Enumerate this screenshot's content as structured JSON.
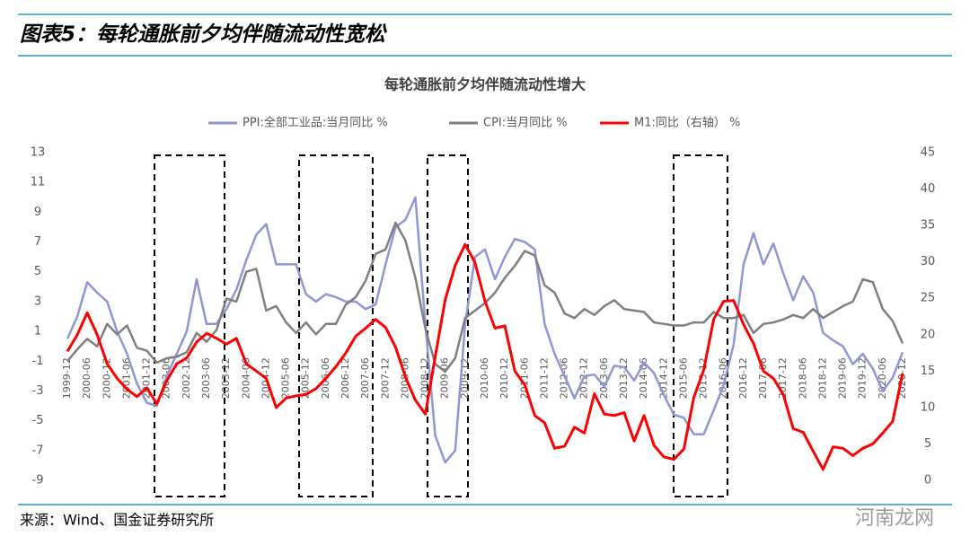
{
  "header": {
    "title": "图表5：每轮通胀前夕均伴随流动性宽松"
  },
  "chart_data": {
    "type": "line",
    "title": "每轮通胀前夕均伴随流动性增大",
    "categories": [
      "1999-12",
      null,
      "2000-06",
      null,
      "2000-12",
      null,
      "2001-06",
      null,
      "2001-12",
      null,
      "2002-06",
      null,
      "2002-12",
      null,
      "2003-06",
      null,
      "2003-12",
      null,
      "2004-06",
      null,
      "2004-12",
      null,
      "2005-06",
      null,
      "2005-12",
      null,
      "2006-06",
      null,
      "2006-12",
      null,
      "2007-06",
      null,
      "2007-12",
      null,
      "2008-06",
      null,
      "2008-12",
      null,
      "2009-06",
      null,
      "2009-12",
      null,
      "2010-06",
      null,
      "2010-12",
      null,
      "2011-06",
      null,
      "2011-12",
      null,
      "2012-06",
      null,
      "2012-12",
      null,
      "2013-06",
      null,
      "2013-12",
      null,
      "2014-06",
      null,
      "2014-12",
      null,
      "2015-06",
      null,
      "2015-12",
      null,
      "2016-06",
      null,
      "2016-12",
      null,
      "2017-06",
      null,
      "2017-12",
      null,
      "2018-06",
      null,
      "2018-12",
      null,
      "2019-06",
      null,
      "2019-12",
      null,
      "2020-06",
      null,
      "2020-12"
    ],
    "series": [
      {
        "name": "PPI:全部工业品:当月同比 %",
        "color": "#8f96d3",
        "axis": "y",
        "values": [
          0.5,
          2,
          4.3,
          3.6,
          3.0,
          1.0,
          -0.5,
          -2.5,
          -3.8,
          -4,
          -2,
          -0.5,
          1,
          4.5,
          1.5,
          1.5,
          2.5,
          3.8,
          5.8,
          7.5,
          8.2,
          5.5,
          5.5,
          5.5,
          3.5,
          3.0,
          3.5,
          3.3,
          3.0,
          3.0,
          2.5,
          2.8,
          5.5,
          8.0,
          8.5,
          10.0,
          1.5,
          -6,
          -7.8,
          -7.0,
          1.5,
          6,
          6.5,
          4.5,
          6,
          7.2,
          7.0,
          6.5,
          1.5,
          -0.5,
          -2.0,
          -3.5,
          -2.0,
          -1.9,
          -2.7,
          -1.3,
          -1.4,
          -2.3,
          -1.1,
          -1.8,
          -3.3,
          -4.6,
          -4.8,
          -5.9,
          -5.9,
          -4.3,
          -2.6,
          0.1,
          5.5,
          7.6,
          5.5,
          6.9,
          4.9,
          3.1,
          4.7,
          3.6,
          0.9,
          0.4,
          0,
          -1.2,
          -0.5,
          -1.5,
          -3.0,
          -2.1,
          -0.4
        ]
      },
      {
        "name": "CPI:当月同比 %",
        "color": "#7f7f7f",
        "axis": "y",
        "values": [
          -1,
          -0.2,
          0.5,
          0,
          1.5,
          0.8,
          1.4,
          -0.1,
          -0.3,
          -1.1,
          -0.8,
          -0.7,
          -0.4,
          0.9,
          0.3,
          1.1,
          3.2,
          3.0,
          5.0,
          5.2,
          2.4,
          2.7,
          1.6,
          0.9,
          1.6,
          0.8,
          1.5,
          1.5,
          2.8,
          3.3,
          4.4,
          6.2,
          6.5,
          8.3,
          7.1,
          4.6,
          1.2,
          -1.2,
          -1.7,
          -0.8,
          1.9,
          2.4,
          2.9,
          3.6,
          4.6,
          5.4,
          6.4,
          6.1,
          4.1,
          3.6,
          2.2,
          1.9,
          2.5,
          2.1,
          2.7,
          3.1,
          2.5,
          2.4,
          2.3,
          1.6,
          1.5,
          1.4,
          1.4,
          1.6,
          1.6,
          2.3,
          1.9,
          1.9,
          2.1,
          0.9,
          1.5,
          1.6,
          1.8,
          2.1,
          1.9,
          2.5,
          1.9,
          2.3,
          2.7,
          3.0,
          4.5,
          4.3,
          2.5,
          1.7,
          0.2
        ]
      },
      {
        "name": "M1:同比（右轴） %",
        "color": "#ff0000",
        "axis": "y2",
        "values": [
          17.7,
          20,
          23,
          20,
          16,
          14,
          12.5,
          11.5,
          12.7,
          10.5,
          13.7,
          16,
          16.8,
          19,
          20.2,
          19.5,
          18.7,
          19.5,
          16,
          15,
          14,
          10,
          11.3,
          11.6,
          11.8,
          12.6,
          14.0,
          15.6,
          17.5,
          19.8,
          20.9,
          22.1,
          21.0,
          18.3,
          14.2,
          11.0,
          9.1,
          17.0,
          24.8,
          29.5,
          32.4,
          29.9,
          24.6,
          20.9,
          21.2,
          15.0,
          13.1,
          8.9,
          7.9,
          4.4,
          4.7,
          7.3,
          6.5,
          11.9,
          9.1,
          8.9,
          9.3,
          5.4,
          8.9,
          4.8,
          3.2,
          2.9,
          4.3,
          11.4,
          15.2,
          22.1,
          24.6,
          24.7,
          21.4,
          18.8,
          15.0,
          14.0,
          11.8,
          7.1,
          6.6,
          4.0,
          1.5,
          4.6,
          4.4,
          3.4,
          4.4,
          5.0,
          6.5,
          8.1,
          14.7
        ]
      }
    ],
    "ylim": [
      -9,
      13
    ],
    "yticks": [
      -9,
      -7,
      -5,
      -3,
      -1,
      1,
      3,
      5,
      7,
      9,
      11,
      13
    ],
    "y2lim": [
      0,
      45
    ],
    "y2ticks": [
      0,
      5,
      10,
      15,
      20,
      25,
      30,
      35,
      40,
      45
    ],
    "grid": false,
    "legend": "top"
  },
  "source": "来源：Wind、国金证券研究所",
  "watermark": "河南龙网"
}
